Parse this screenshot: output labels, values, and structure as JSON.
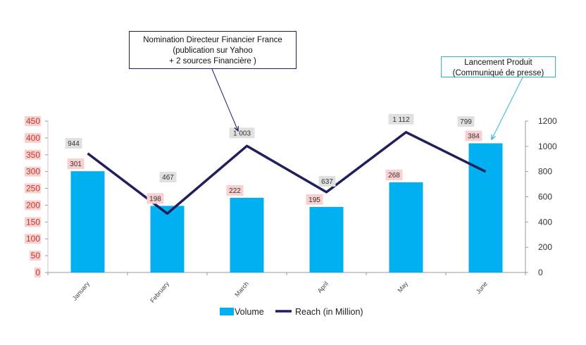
{
  "chart_data": {
    "type": "bar",
    "categories": [
      "January",
      "February",
      "March",
      "April",
      "May",
      "June"
    ],
    "series": [
      {
        "name": "Volume",
        "type": "bar",
        "axis": "left",
        "values": [
          301,
          198,
          222,
          195,
          268,
          384
        ],
        "labels": [
          "301",
          "198",
          "222",
          "195",
          "268",
          "384"
        ]
      },
      {
        "name": "Reach (in Million)",
        "type": "line",
        "axis": "right",
        "values": [
          944,
          467,
          1003,
          637,
          1112,
          799
        ],
        "labels": [
          "944",
          "467",
          "1 003",
          "637",
          "1 112",
          "799"
        ]
      }
    ],
    "y_left": {
      "lim": [
        0,
        450
      ],
      "ticks": [
        "0",
        "50",
        "100",
        "150",
        "200",
        "250",
        "300",
        "350",
        "400",
        "450"
      ]
    },
    "y_right": {
      "lim": [
        0,
        1200
      ],
      "ticks": [
        "0",
        "200",
        "400",
        "600",
        "800",
        "1000",
        "1200"
      ]
    },
    "legend_position": "bottom",
    "grid": false,
    "colors": {
      "bar": "#00B0F0",
      "line": "#1F1F5C",
      "left_axis_text": "#C0392B",
      "bar_label_bg": "#F8D0D0",
      "line_label_bg": "#E0E0E0"
    }
  },
  "annotations": [
    {
      "lines": [
        "Nomination Directeur Financier France",
        "(publication sur Yahoo",
        "+ 2 sources Financière )"
      ],
      "target_category": "March",
      "border": "#1F1F5C"
    },
    {
      "lines": [
        "Lancement Produit",
        "(Communiqué de presse)"
      ],
      "target_category": "June",
      "border": "#29B6D8"
    }
  ]
}
